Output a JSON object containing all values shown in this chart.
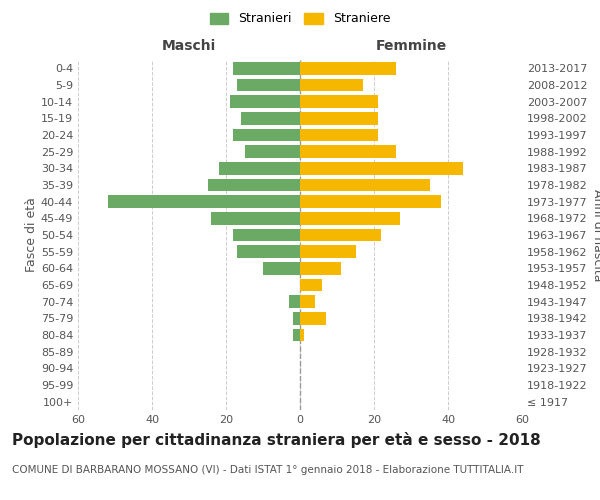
{
  "age_groups": [
    "100+",
    "95-99",
    "90-94",
    "85-89",
    "80-84",
    "75-79",
    "70-74",
    "65-69",
    "60-64",
    "55-59",
    "50-54",
    "45-49",
    "40-44",
    "35-39",
    "30-34",
    "25-29",
    "20-24",
    "15-19",
    "10-14",
    "5-9",
    "0-4"
  ],
  "birth_years": [
    "≤ 1917",
    "1918-1922",
    "1923-1927",
    "1928-1932",
    "1933-1937",
    "1938-1942",
    "1943-1947",
    "1948-1952",
    "1953-1957",
    "1958-1962",
    "1963-1967",
    "1968-1972",
    "1973-1977",
    "1978-1982",
    "1983-1987",
    "1988-1992",
    "1993-1997",
    "1998-2002",
    "2003-2007",
    "2008-2012",
    "2013-2017"
  ],
  "males": [
    0,
    0,
    0,
    0,
    2,
    2,
    3,
    0,
    10,
    17,
    18,
    24,
    52,
    25,
    22,
    15,
    18,
    16,
    19,
    17,
    18
  ],
  "females": [
    0,
    0,
    0,
    0,
    1,
    7,
    4,
    6,
    11,
    15,
    22,
    27,
    38,
    35,
    44,
    26,
    21,
    21,
    21,
    17,
    26
  ],
  "male_color": "#6aaa64",
  "female_color": "#f5b700",
  "title": "Popolazione per cittadinanza straniera per età e sesso - 2018",
  "subtitle": "COMUNE DI BARBARANO MOSSANO (VI) - Dati ISTAT 1° gennaio 2018 - Elaborazione TUTTITALIA.IT",
  "xlabel_left": "Maschi",
  "xlabel_right": "Femmine",
  "ylabel_left": "Fasce di età",
  "ylabel_right": "Anni di nascita",
  "legend_male": "Stranieri",
  "legend_female": "Straniere",
  "xlim": 60,
  "background_color": "#ffffff",
  "grid_color": "#cccccc",
  "title_fontsize": 11,
  "subtitle_fontsize": 7.5,
  "label_fontsize": 9,
  "tick_fontsize": 8
}
